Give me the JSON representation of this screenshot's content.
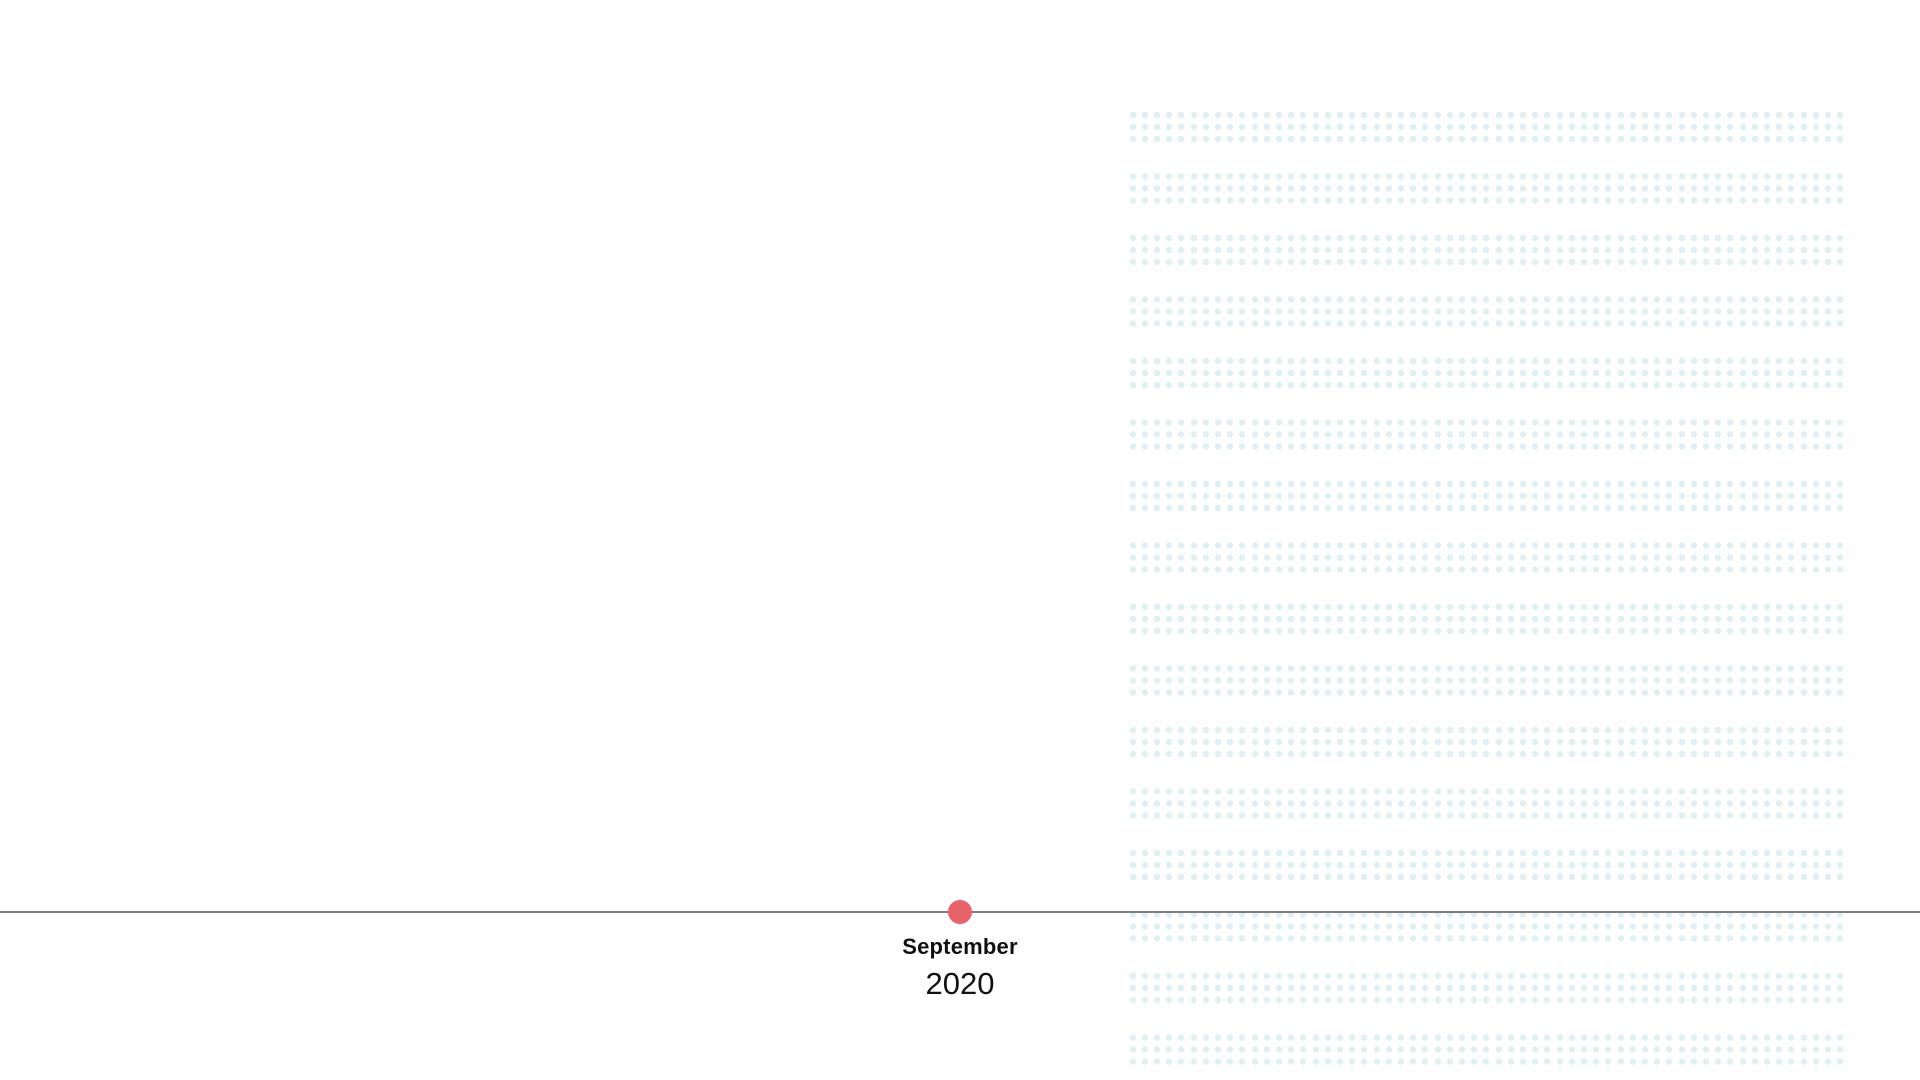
{
  "colors": {
    "background": "#ffffff",
    "dots": "#dff0f3",
    "line": "#7d7d7d",
    "marker": "#e8626a",
    "text": "#111111"
  },
  "timeline": {
    "marker_icon": "circle-marker-icon",
    "current": {
      "month": "September",
      "year": "2020"
    }
  },
  "decoration": {
    "icon": "dot-grid-pattern"
  }
}
